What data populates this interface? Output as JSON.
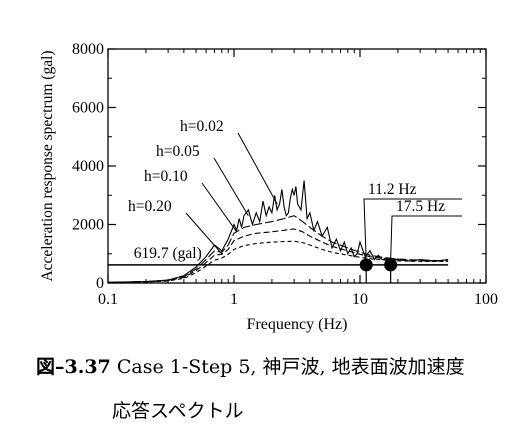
{
  "chart_data": {
    "type": "line",
    "title": "",
    "xlabel": "Frequency (Hz)",
    "ylabel": "Acceleration response spectrum (gal)",
    "xscale": "log",
    "xlim": [
      0.1,
      100
    ],
    "ylim": [
      0,
      8000
    ],
    "xticks": [
      {
        "value": 0.1,
        "label": "0.1"
      },
      {
        "value": 1,
        "label": "1"
      },
      {
        "value": 10,
        "label": "10"
      },
      {
        "value": 100,
        "label": "100"
      }
    ],
    "yticks": [
      {
        "value": 0,
        "label": "0"
      },
      {
        "value": 2000,
        "label": "2000"
      },
      {
        "value": 4000,
        "label": "4000"
      },
      {
        "value": 6000,
        "label": "6000"
      },
      {
        "value": 8000,
        "label": "8000"
      }
    ],
    "series": [
      {
        "name": "h=0.02",
        "dash": "solid",
        "x": [
          0.1,
          0.2,
          0.3,
          0.4,
          0.5,
          0.6,
          0.7,
          0.75,
          0.8,
          0.9,
          1.0,
          1.05,
          1.1,
          1.15,
          1.2,
          1.3,
          1.4,
          1.5,
          1.6,
          1.7,
          1.8,
          1.9,
          2.0,
          2.1,
          2.2,
          2.3,
          2.4,
          2.5,
          2.6,
          2.7,
          2.8,
          2.9,
          3.0,
          3.1,
          3.2,
          3.4,
          3.6,
          3.8,
          4.0,
          4.3,
          4.6,
          5.0,
          5.5,
          6.0,
          6.5,
          7.0,
          7.5,
          8.0,
          8.5,
          9.0,
          9.5,
          10,
          11,
          12,
          13,
          14,
          15,
          17,
          20,
          25,
          30,
          40,
          50
        ],
        "values": [
          20,
          50,
          100,
          250,
          550,
          900,
          1300,
          1200,
          1100,
          1500,
          2000,
          1800,
          2200,
          1900,
          2300,
          2500,
          2000,
          2400,
          2100,
          2800,
          2300,
          2600,
          2400,
          3000,
          2500,
          2700,
          3200,
          2600,
          2300,
          2400,
          2900,
          3200,
          3000,
          3300,
          2700,
          2500,
          3500,
          2200,
          2400,
          1800,
          2100,
          1600,
          1900,
          1200,
          1500,
          1100,
          1400,
          1000,
          1200,
          900,
          1000,
          1400,
          900,
          1100,
          800,
          950,
          800,
          850,
          800,
          750,
          800,
          750,
          800
        ]
      },
      {
        "name": "h=0.05",
        "dash": "dash-long",
        "x": [
          0.1,
          0.2,
          0.3,
          0.4,
          0.5,
          0.6,
          0.7,
          0.8,
          0.9,
          1.0,
          1.2,
          1.5,
          2.0,
          2.5,
          3.0,
          3.5,
          4.0,
          5.0,
          6.0,
          8.0,
          10,
          12,
          15,
          20,
          30,
          50
        ],
        "values": [
          20,
          45,
          90,
          220,
          480,
          800,
          1100,
          1050,
          1300,
          1700,
          1900,
          2000,
          2100,
          2200,
          2300,
          2100,
          1900,
          1600,
          1400,
          1200,
          1050,
          950,
          880,
          820,
          780,
          760
        ]
      },
      {
        "name": "h=0.10",
        "dash": "dash-medium",
        "x": [
          0.1,
          0.2,
          0.3,
          0.4,
          0.5,
          0.6,
          0.7,
          0.8,
          0.9,
          1.0,
          1.2,
          1.5,
          2.0,
          2.5,
          3.0,
          3.5,
          4.0,
          5.0,
          6.0,
          8.0,
          10,
          12,
          15,
          20,
          30,
          50
        ],
        "values": [
          20,
          40,
          80,
          190,
          420,
          700,
          950,
          980,
          1150,
          1450,
          1600,
          1700,
          1750,
          1800,
          1850,
          1750,
          1600,
          1400,
          1250,
          1100,
          980,
          900,
          840,
          790,
          760,
          750
        ]
      },
      {
        "name": "h=0.20",
        "dash": "dash-short",
        "x": [
          0.1,
          0.2,
          0.3,
          0.4,
          0.5,
          0.6,
          0.7,
          0.8,
          0.9,
          1.0,
          1.2,
          1.5,
          2.0,
          2.5,
          3.0,
          3.5,
          4.0,
          5.0,
          6.0,
          8.0,
          10,
          12,
          15,
          20,
          30,
          50
        ],
        "values": [
          20,
          35,
          70,
          160,
          350,
          580,
          780,
          850,
          980,
          1150,
          1280,
          1350,
          1400,
          1420,
          1430,
          1380,
          1300,
          1150,
          1050,
          950,
          880,
          830,
          790,
          760,
          740,
          740
        ]
      }
    ],
    "reference_line": {
      "label": "619.7 (gal)",
      "value": 619.7,
      "x_from": 0.1,
      "x_to": 50
    },
    "markers": [
      {
        "label": "11.2 Hz",
        "x": 11.2,
        "y": 619.7
      },
      {
        "label": "17.5 Hz",
        "x": 17.5,
        "y": 619.7
      }
    ],
    "grid": false,
    "legend": "inline-labels"
  },
  "caption": {
    "figure_number": "図–3.37",
    "line1": "Case 1-Step 5, 神戸波, 地表面波加速度",
    "line2": "応答スペクトル"
  }
}
